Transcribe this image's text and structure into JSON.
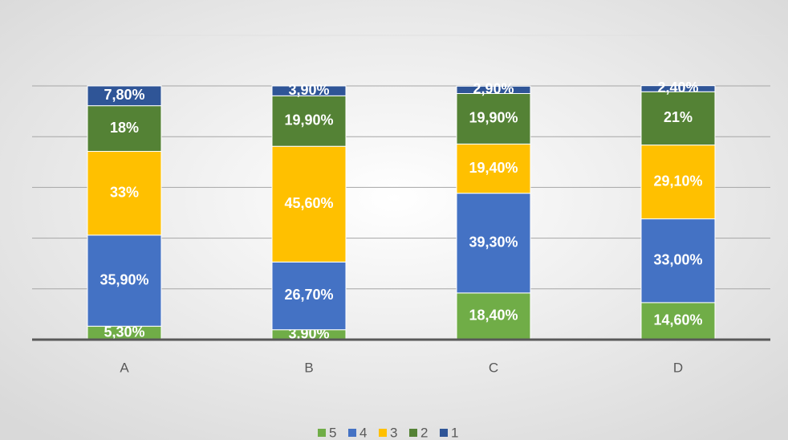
{
  "chart_data": {
    "type": "stacked_bar",
    "categories": [
      "A",
      "B",
      "C",
      "D"
    ],
    "series": [
      {
        "name": "5",
        "color": "#70ad47",
        "values": [
          5.3,
          3.9,
          18.4,
          14.6
        ],
        "value_labels": [
          "5,30%",
          "3,90%",
          "18,40%",
          "14,60%"
        ]
      },
      {
        "name": "4",
        "color": "#4472c4",
        "values": [
          35.9,
          26.7,
          39.3,
          33.0
        ],
        "value_labels": [
          "35,90%",
          "26,70%",
          "39,30%",
          "33,00%"
        ]
      },
      {
        "name": "3",
        "color": "#ffc000",
        "values": [
          33,
          45.6,
          19.4,
          29.1
        ],
        "value_labels": [
          "33%",
          "45,60%",
          "19,40%",
          "29,10%"
        ]
      },
      {
        "name": "2",
        "color": "#548235",
        "values": [
          18,
          19.9,
          19.9,
          21
        ],
        "value_labels": [
          "18%",
          "19,90%",
          "19,90%",
          "21%"
        ]
      },
      {
        "name": "1",
        "color": "#2f5597",
        "values": [
          7.8,
          3.9,
          2.9,
          2.4
        ],
        "value_labels": [
          "7,80%",
          "3,90%",
          "2,90%",
          "2,40%"
        ]
      }
    ],
    "ylim": [
      0,
      100
    ],
    "yticks": [
      0,
      20,
      40,
      60,
      80,
      100
    ],
    "grid": true,
    "legend": "bottom"
  }
}
